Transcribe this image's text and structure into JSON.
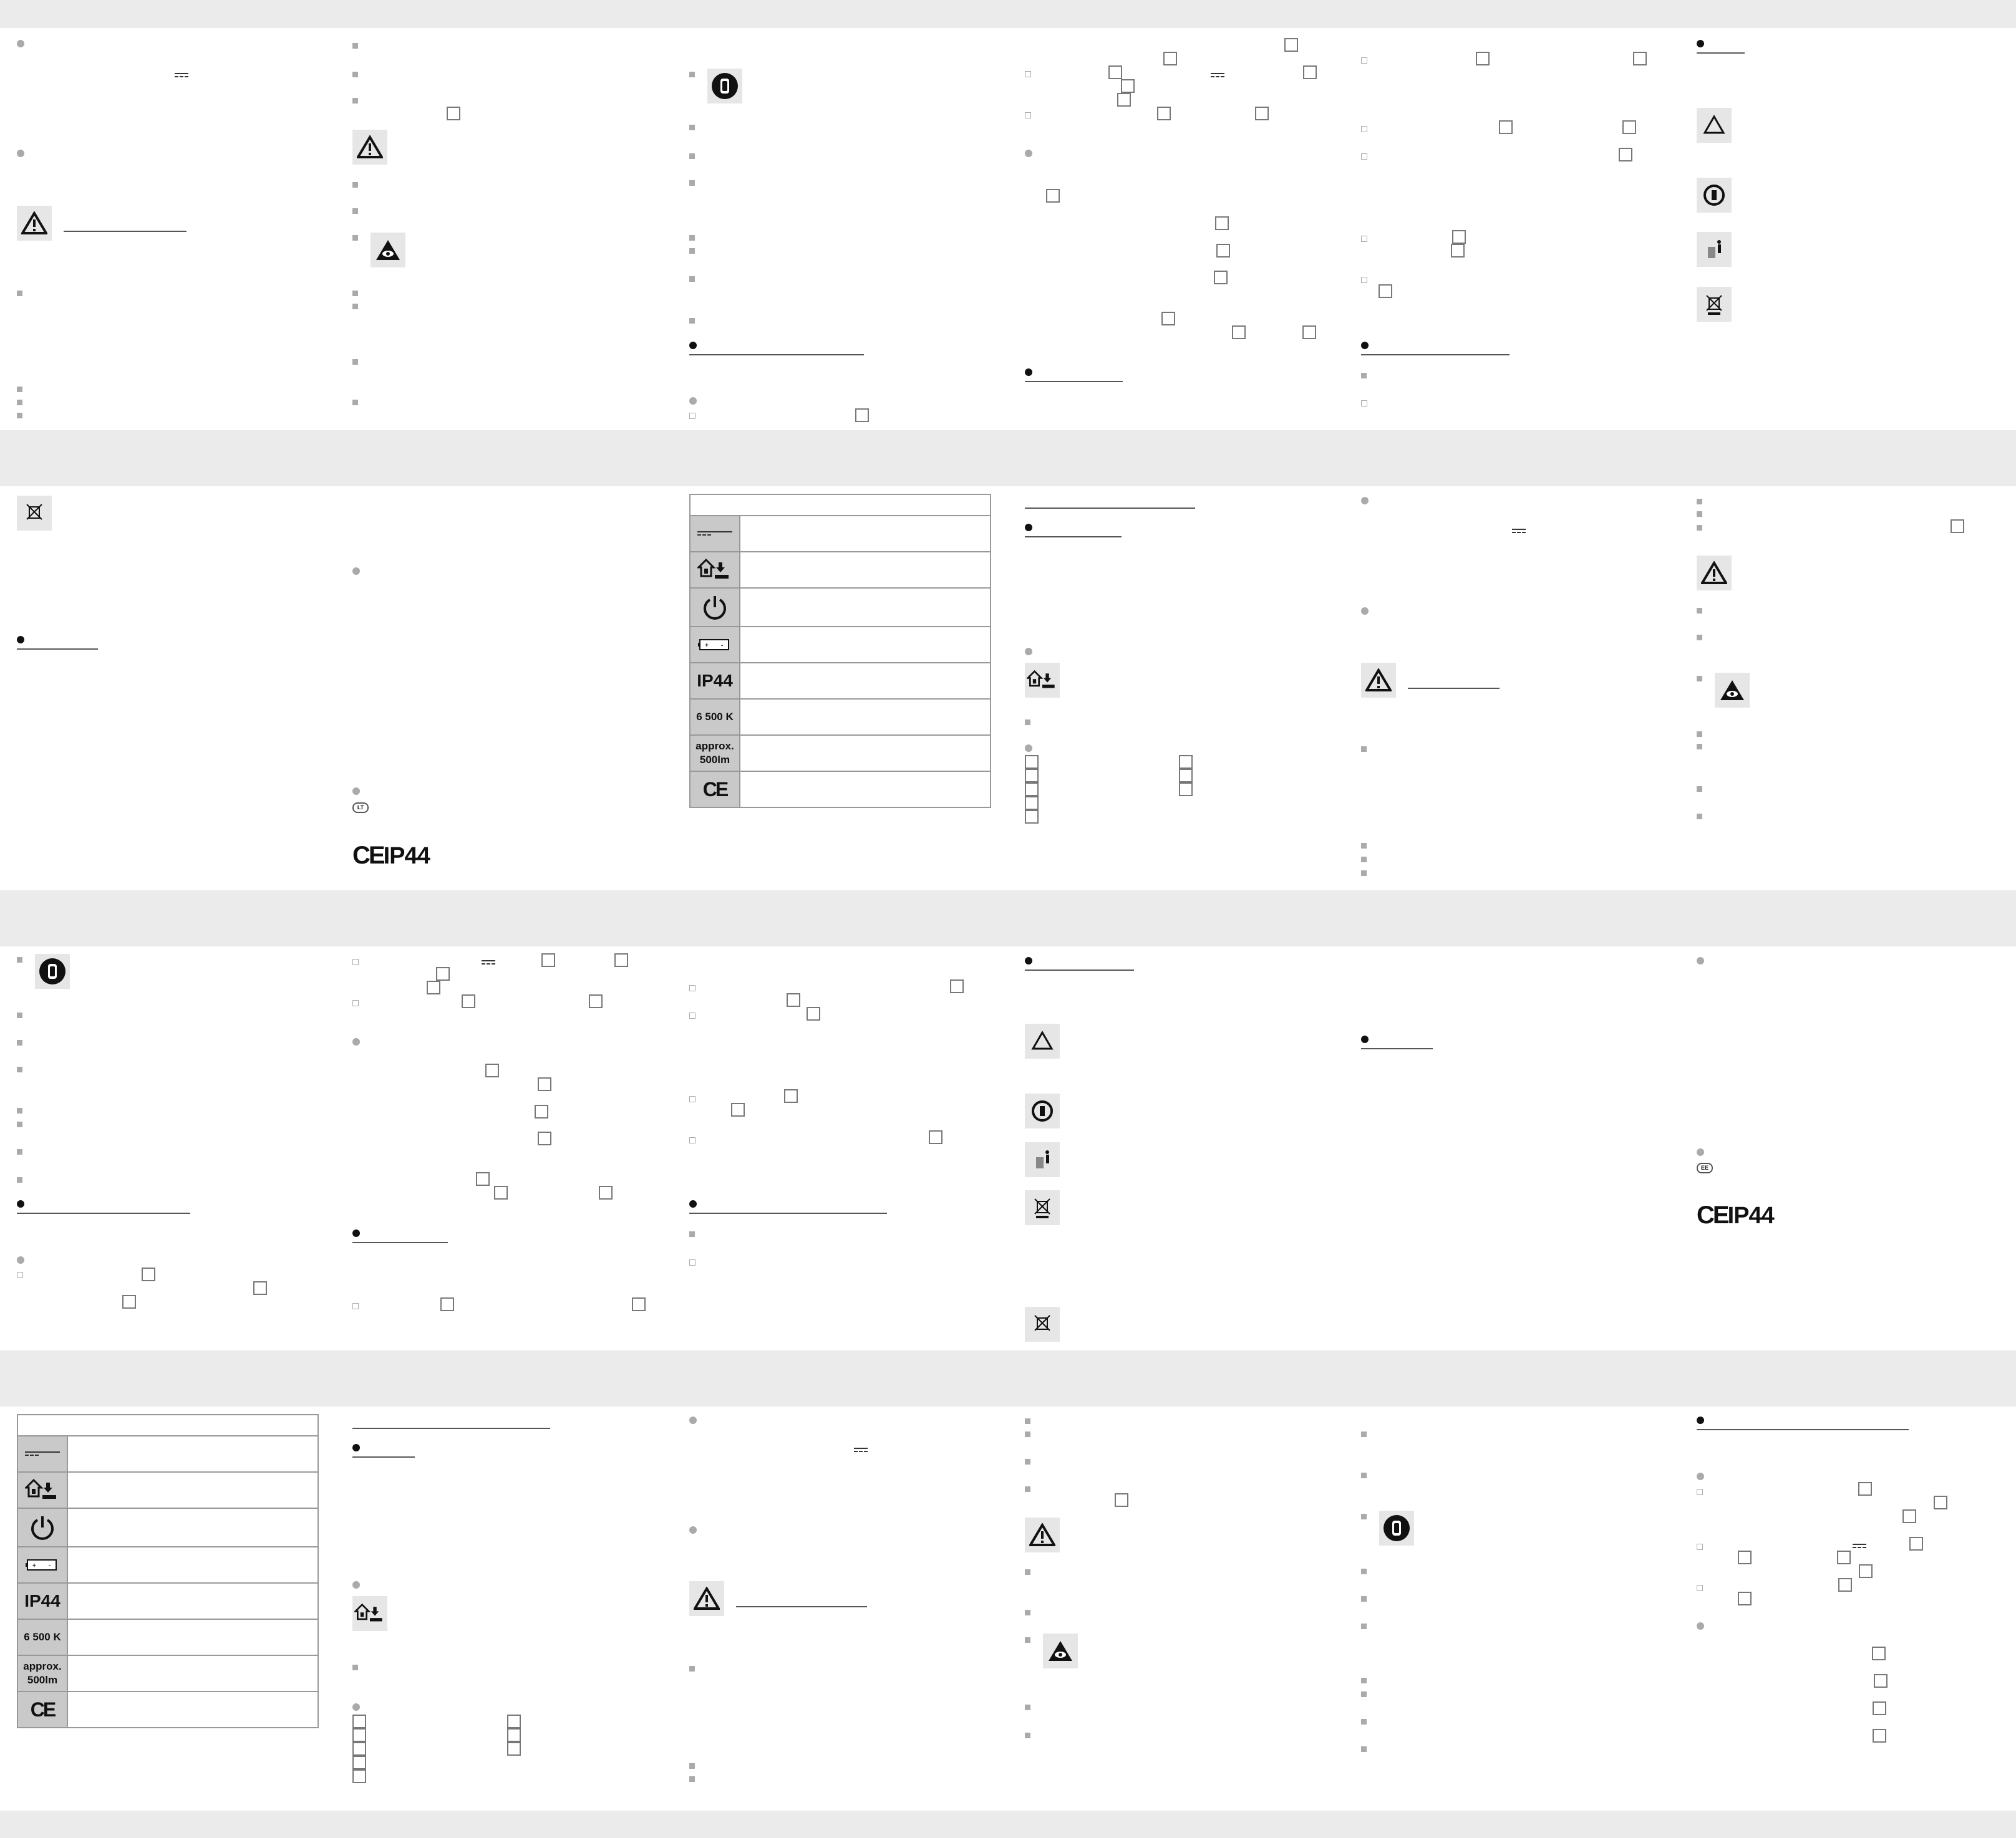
{
  "spec_table": {
    "ip_rating": "IP44",
    "color_temperature": "6 500 K",
    "luminous_flux_line1": "approx.",
    "luminous_flux_line2": "500lm",
    "ce": "CE"
  },
  "marks": {
    "ce_ip": "IP44",
    "lang_lt": "LT",
    "lang_ee": "EE"
  },
  "icons": [
    "warning-icon",
    "glove-icon",
    "eye-protection-icon",
    "recycling-icon",
    "battery-recycle-icon",
    "trash-icon",
    "crossed-bin-icon",
    "dc-symbol-icon",
    "power-icon",
    "battery-icon",
    "indoor-use-icon"
  ]
}
